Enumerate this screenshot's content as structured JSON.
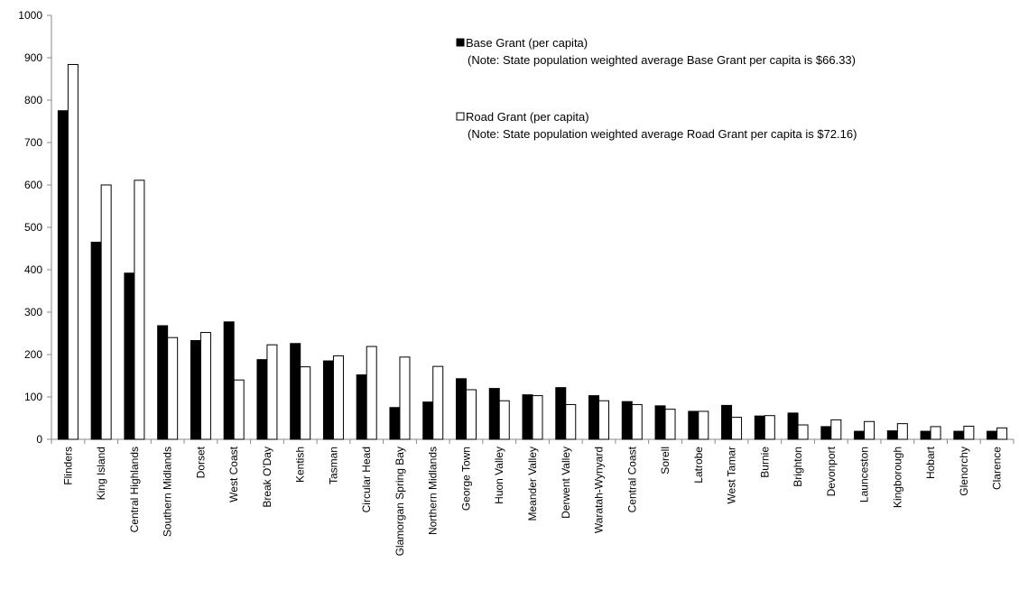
{
  "chart_data": {
    "type": "bar",
    "categories": [
      "Flinders",
      "King Island",
      "Central Highlands",
      "Southern Midlands",
      "Dorset",
      "West Coast",
      "Break O'Day",
      "Kentish",
      "Tasman",
      "Circular Head",
      "Glamorgan Spring Bay",
      "Northern Midlands",
      "George Town",
      "Huon Valley",
      "Meander Valley",
      "Derwent Valley",
      "Waratah-Wynyard",
      "Central Coast",
      "Sorell",
      "Latrobe",
      "West Tamar",
      "Burnie",
      "Brighton",
      "Devonport",
      "Launceston",
      "Kingborough",
      "Hobart",
      "Glenorchy",
      "Clarence"
    ],
    "series": [
      {
        "name": "Base Grant (per capita)",
        "note": "(Note: State population weighted average Base Grant per capita is $66.33)",
        "color": "#000000",
        "fill": "#000000",
        "values": [
          775,
          465,
          392,
          268,
          233,
          277,
          188,
          226,
          185,
          152,
          75,
          88,
          143,
          120,
          105,
          122,
          103,
          89,
          79,
          66,
          80,
          55,
          62,
          30,
          19,
          20,
          19,
          19,
          19
        ]
      },
      {
        "name": "Road Grant (per capita)",
        "note": "(Note: State population weighted average Road Grant per capita is $72.16)",
        "color": "#000000",
        "fill": "#ffffff",
        "values": [
          884,
          600,
          611,
          240,
          252,
          140,
          223,
          171,
          197,
          219,
          194,
          172,
          117,
          91,
          103,
          82,
          91,
          82,
          71,
          66,
          52,
          56,
          34,
          46,
          42,
          37,
          30,
          31,
          27
        ]
      }
    ],
    "title": "",
    "xlabel": "",
    "ylabel": "",
    "ylim": [
      0,
      1000
    ],
    "yticks": [
      "0",
      "100",
      "200",
      "300",
      "400",
      "500",
      "600",
      "700",
      "800",
      "900",
      "1000"
    ],
    "grid": false,
    "legend": "top-right"
  }
}
